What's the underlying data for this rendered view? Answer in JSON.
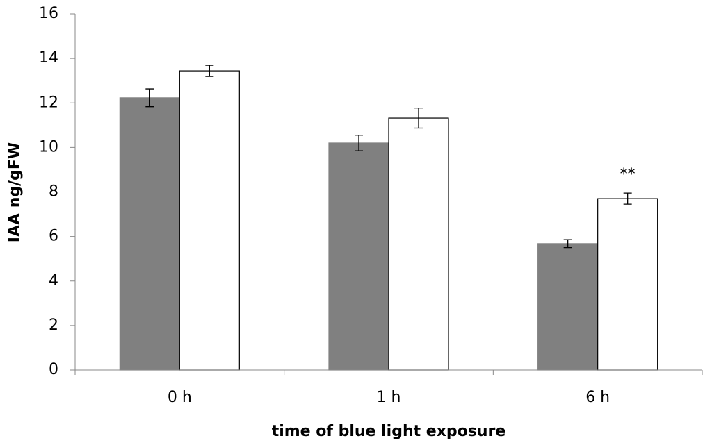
{
  "chart_data": {
    "type": "bar",
    "xlabel": "time of blue light exposure",
    "ylabel": "IAA ng/gFW",
    "categories": [
      "0 h",
      "1 h",
      "6 h"
    ],
    "series": [
      {
        "color": "#808080",
        "values": [
          12.23,
          10.2,
          5.68
        ],
        "errors": [
          0.4,
          0.35,
          0.18
        ]
      },
      {
        "color": "#ffffff",
        "values": [
          13.44,
          11.32,
          7.7
        ],
        "errors": [
          0.25,
          0.45,
          0.25
        ]
      }
    ],
    "annotations": [
      {
        "text": "**",
        "x": "6 h"
      }
    ],
    "ylim": [
      0,
      16
    ],
    "yticks": [
      0,
      2,
      4,
      6,
      8,
      10,
      12,
      14,
      16
    ],
    "grid": false
  }
}
